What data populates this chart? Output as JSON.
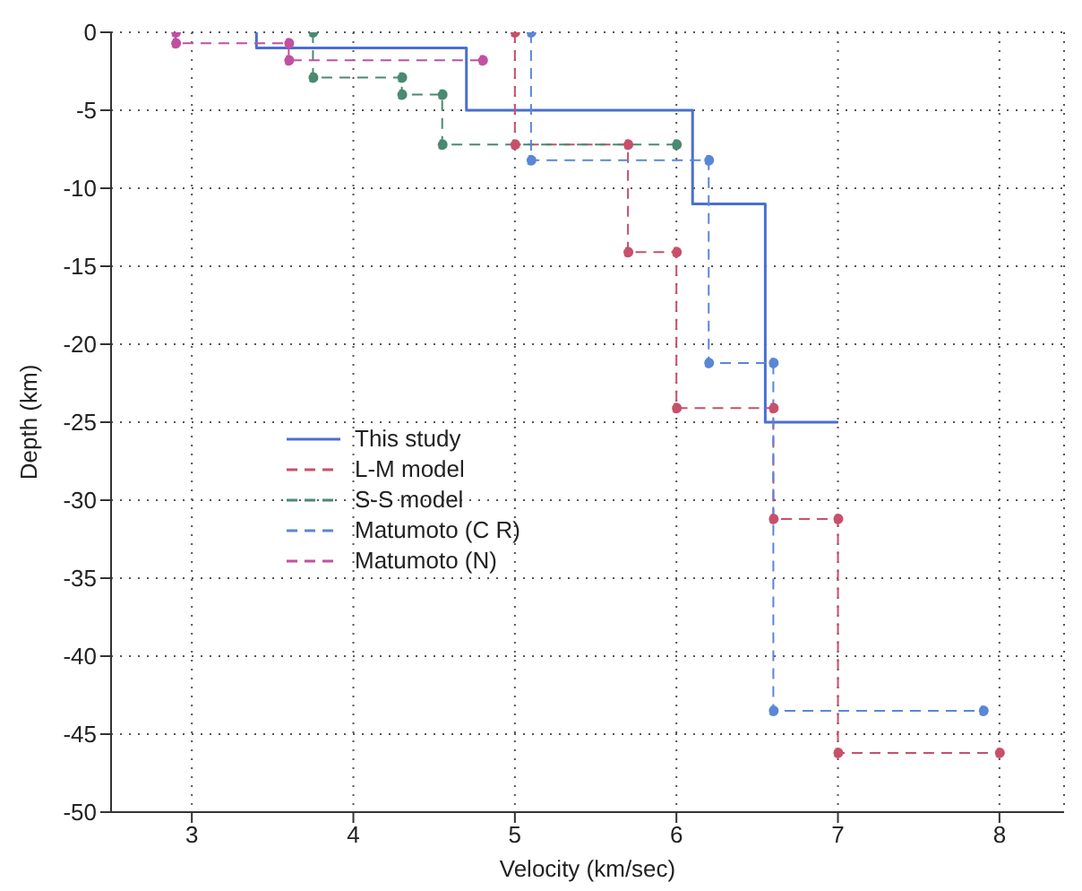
{
  "chart_data": {
    "type": "line",
    "xlabel": "Velocity (km/sec)",
    "ylabel": "Depth (km)",
    "xlim": [
      2.5,
      8.4
    ],
    "ylim": [
      -50,
      0
    ],
    "xticks": [
      3,
      4,
      5,
      6,
      7,
      8
    ],
    "yticks": [
      0,
      -5,
      -10,
      -15,
      -20,
      -25,
      -30,
      -35,
      -40,
      -45,
      -50
    ],
    "grid": true,
    "legend": "left",
    "series": [
      {
        "name": "This study",
        "color": "#4a6fd0",
        "line_style": "solid",
        "marker": "none",
        "x": [
          3.4,
          3.4,
          4.7,
          4.7,
          6.1,
          6.1,
          6.55,
          6.55,
          7.0
        ],
        "values": [
          0,
          -1,
          -1,
          -5,
          -5,
          -11,
          -11,
          -25,
          -25
        ]
      },
      {
        "name": "L-M model",
        "color": "#c8506a",
        "line_style": "dashed",
        "marker": "circle",
        "x": [
          5.0,
          5.0,
          5.7,
          5.7,
          6.0,
          6.0,
          6.6,
          6.6,
          7.0,
          7.0,
          8.0
        ],
        "values": [
          0,
          -7.2,
          -7.2,
          -14.1,
          -14.1,
          -24.1,
          -24.1,
          -31.2,
          -31.2,
          -46.2,
          -46.2
        ]
      },
      {
        "name": "S-S model",
        "color": "#4a8a70",
        "line_style": "dashed",
        "marker": "circle",
        "x": [
          3.75,
          3.75,
          4.3,
          4.3,
          4.55,
          4.55,
          6.0
        ],
        "values": [
          0,
          -2.9,
          -2.9,
          -4,
          -4,
          -7.2,
          -7.2
        ]
      },
      {
        "name": "Matumoto (C R)",
        "color": "#5a86d6",
        "line_style": "dashed",
        "marker": "circle",
        "x": [
          5.1,
          5.1,
          6.2,
          6.2,
          6.6,
          6.6,
          7.9
        ],
        "values": [
          0,
          -8.2,
          -8.2,
          -21.2,
          -21.2,
          -43.5,
          -43.5
        ]
      },
      {
        "name": "Matumoto (N)",
        "color": "#c050a0",
        "line_style": "dashed",
        "marker": "circle",
        "x": [
          2.9,
          2.9,
          3.6,
          3.6,
          4.8
        ],
        "values": [
          0,
          -0.7,
          -0.7,
          -1.8,
          -1.8
        ]
      }
    ]
  }
}
